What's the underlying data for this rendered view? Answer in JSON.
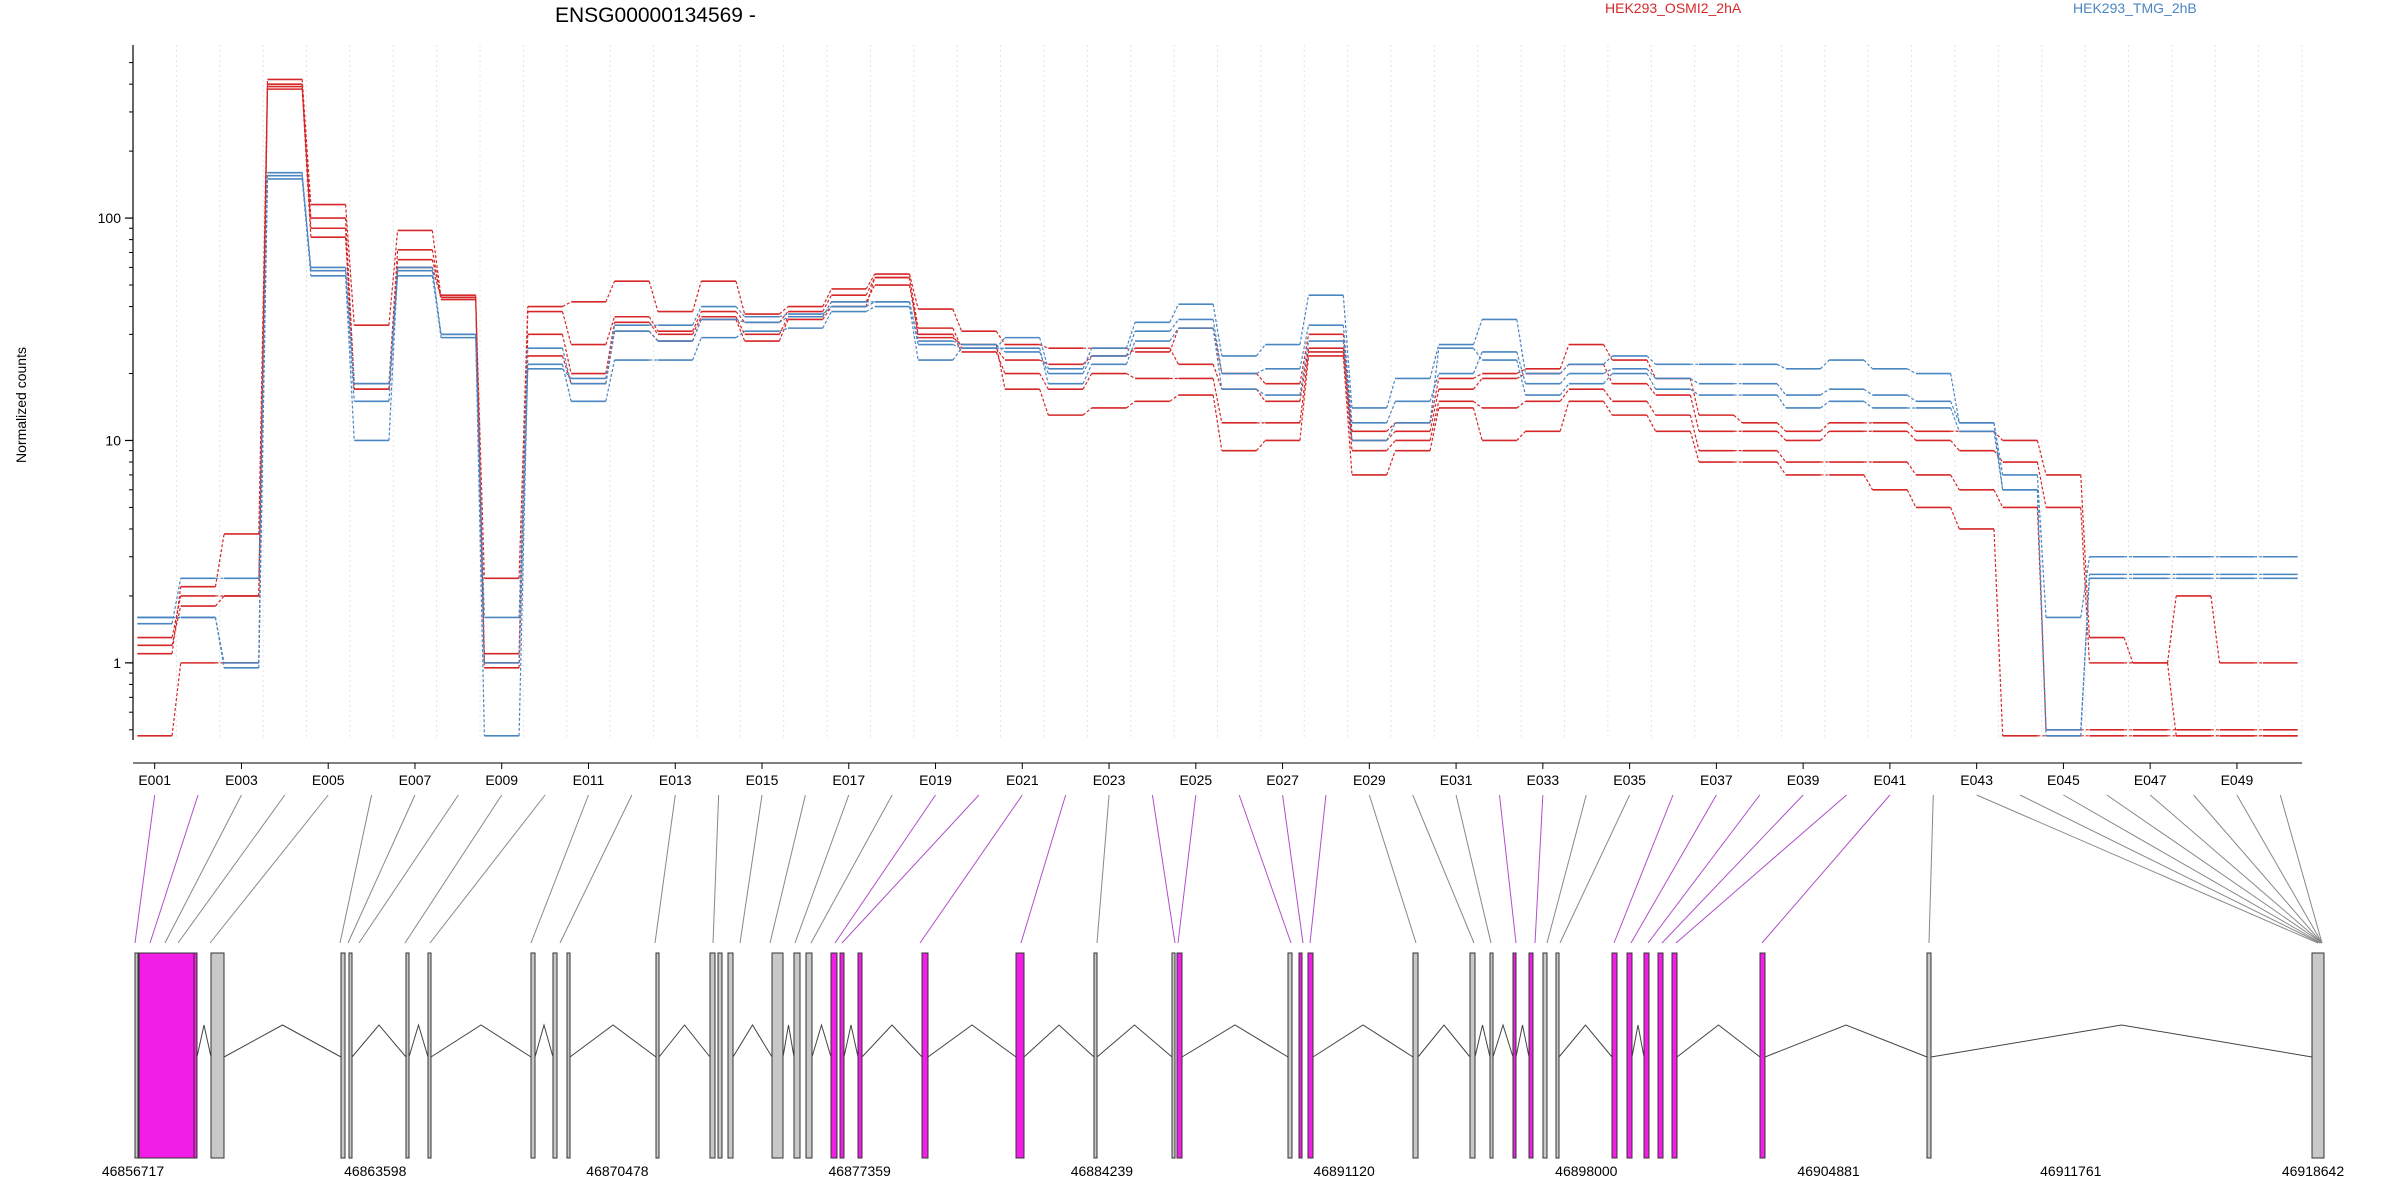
{
  "chart_data": {
    "type": "line",
    "title": "ENSG00000134569 -",
    "ylabel": "Normalized counts",
    "yscale": "log",
    "ylim": [
      0.45,
      600
    ],
    "y_ticks": [
      "1",
      "10",
      "100"
    ],
    "legend": [
      {
        "name": "HEK293_OSMI2_2hA",
        "color": "#d62728"
      },
      {
        "name": "HEK293_TMG_2hB",
        "color": "#4a86c2"
      }
    ],
    "exon_ticks": [
      "E001",
      "E003",
      "E005",
      "E007",
      "E009",
      "E011",
      "E013",
      "E015",
      "E017",
      "E019",
      "E021",
      "E023",
      "E025",
      "E027",
      "E029",
      "E031",
      "E033",
      "E035",
      "E037",
      "E039",
      "E041",
      "E043",
      "E045",
      "E047",
      "E049"
    ],
    "series": [
      {
        "color": "#d62728",
        "values": [
          1.1,
          2.2,
          3.8,
          420,
          115,
          33,
          88,
          44,
          2.4,
          40,
          42,
          52,
          38,
          52,
          37,
          40,
          48,
          56,
          39,
          31,
          27,
          26,
          26,
          25,
          32,
          20,
          18,
          30,
          11,
          12,
          19,
          20,
          21,
          27,
          23,
          19,
          13,
          12,
          11,
          12,
          12,
          11,
          11,
          10,
          7,
          1.3,
          1.0,
          2.0,
          1.0,
          1.0
        ]
      },
      {
        "color": "#d62728",
        "values": [
          1.3,
          2.0,
          2.0,
          400,
          100,
          18,
          72,
          43,
          1.1,
          38,
          27,
          36,
          31,
          38,
          34,
          38,
          45,
          54,
          32,
          26,
          23,
          22,
          24,
          26,
          22,
          17,
          15,
          26,
          10,
          11,
          17,
          19,
          20,
          22,
          18,
          16,
          11,
          11,
          10,
          11,
          11,
          10,
          9,
          8,
          5,
          1.0,
          1.0,
          0.47,
          0.47,
          0.47
        ]
      },
      {
        "color": "#d62728",
        "values": [
          0.47,
          1.0,
          1.0,
          380,
          82,
          17,
          60,
          44,
          0.95,
          24,
          18,
          31,
          28,
          35,
          28,
          35,
          40,
          54,
          29,
          27,
          17,
          13,
          14,
          15,
          16,
          9,
          10,
          24,
          7,
          9,
          14,
          10,
          11,
          15,
          13,
          11,
          8,
          8,
          7,
          7,
          6,
          5,
          4,
          0.47,
          0.47,
          0.47,
          0.47,
          0.47,
          0.47,
          0.47
        ]
      },
      {
        "color": "#d62728",
        "values": [
          1.2,
          1.8,
          2.0,
          390,
          90,
          17,
          65,
          45,
          1.0,
          30,
          20,
          34,
          30,
          36,
          30,
          36,
          42,
          50,
          30,
          25,
          20,
          17,
          20,
          19,
          19,
          12,
          12,
          25,
          9,
          10,
          15,
          14,
          15,
          17,
          15,
          13,
          9,
          9,
          8,
          8,
          8,
          7,
          6,
          5,
          0.5,
          0.5,
          0.5,
          0.5,
          0.5,
          0.5
        ]
      },
      {
        "color": "#4a86c2",
        "values": [
          1.6,
          1.6,
          1.0,
          160,
          58,
          15,
          60,
          30,
          0.47,
          22,
          15,
          23,
          23,
          29,
          31,
          32,
          38,
          40,
          23,
          26,
          29,
          21,
          26,
          34,
          41,
          24,
          27,
          45,
          14,
          19,
          27,
          35,
          20,
          22,
          24,
          22,
          22,
          22,
          21,
          23,
          21,
          20,
          12,
          7,
          1.6,
          3.0,
          3.0,
          3.0,
          3.0,
          3.0
        ]
      },
      {
        "color": "#4a86c2",
        "values": [
          1.6,
          1.6,
          0.95,
          150,
          55,
          10,
          58,
          29,
          1.6,
          26,
          18,
          33,
          33,
          40,
          36,
          37,
          40,
          42,
          27,
          26,
          26,
          18,
          22,
          28,
          32,
          17,
          16,
          28,
          10,
          12,
          26,
          23,
          16,
          18,
          20,
          17,
          16,
          16,
          14,
          15,
          14,
          14,
          11,
          6,
          0.47,
          2.5,
          2.5,
          2.5,
          2.5,
          2.5
        ]
      },
      {
        "color": "#4a86c2",
        "values": [
          1.5,
          2.4,
          2.4,
          155,
          60,
          18,
          55,
          30,
          1.0,
          21,
          19,
          31,
          28,
          35,
          34,
          36,
          42,
          42,
          28,
          27,
          25,
          20,
          24,
          31,
          35,
          20,
          21,
          33,
          12,
          15,
          20,
          25,
          18,
          20,
          21,
          19,
          18,
          18,
          16,
          17,
          16,
          15,
          12,
          6,
          0.5,
          2.4,
          2.4,
          2.4,
          2.4,
          2.4
        ]
      }
    ]
  },
  "gene_model": {
    "coordinate_labels": [
      "46856717",
      "46863598",
      "46870478",
      "46877359",
      "46884239",
      "46891120",
      "46898000",
      "46904881",
      "46911761",
      "46918642"
    ]
  }
}
